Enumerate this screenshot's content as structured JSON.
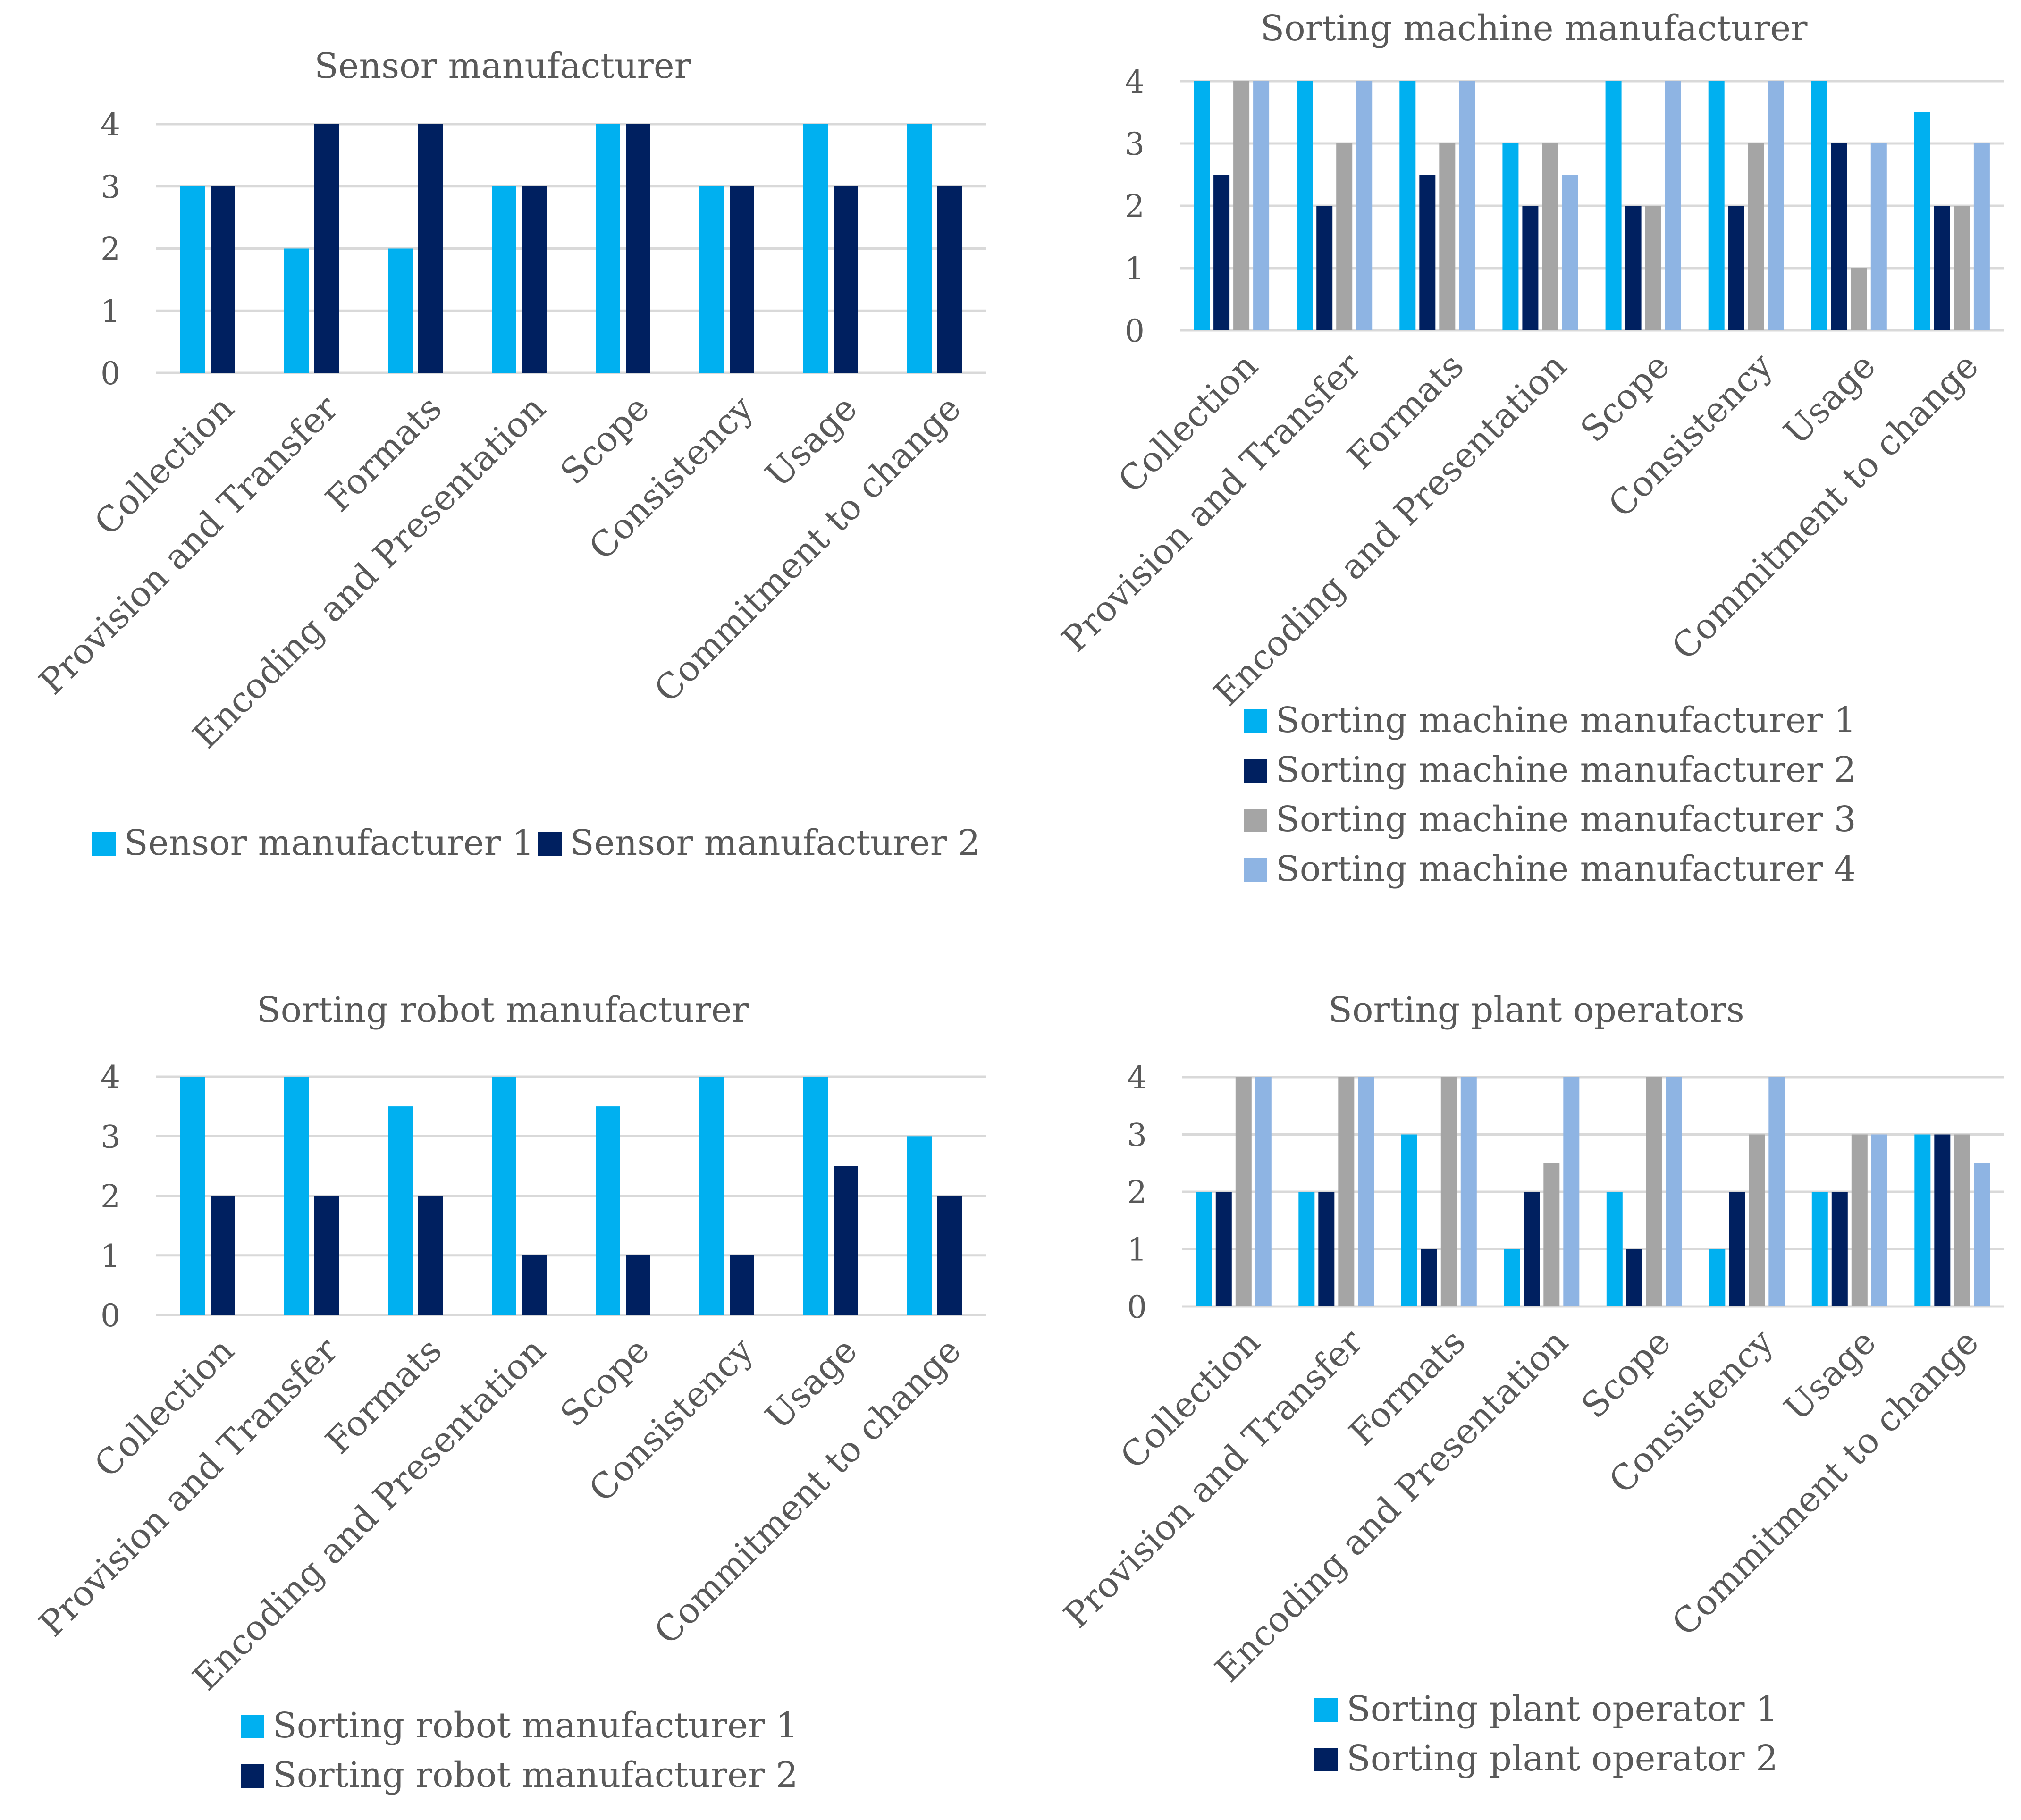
{
  "colors": {
    "s1": "#00b0f0",
    "s2": "#002060",
    "s3": "#a5a5a5",
    "s4": "#8eb4e3",
    "grid": "#d9d9d9",
    "text": "#595959"
  },
  "chart_data": [
    {
      "type": "bar",
      "title": "Sensor manufacturer",
      "categories": [
        "Collection",
        "Provision and Transfer",
        "Formats",
        "Encoding and Presentation",
        "Scope",
        "Consistency",
        "Usage",
        "Commitment to change"
      ],
      "series": [
        {
          "name": "Sensor manufacturer 1",
          "values": [
            3,
            2,
            2,
            3,
            4,
            3,
            4,
            4
          ]
        },
        {
          "name": "Sensor manufacturer 2",
          "values": [
            3,
            4,
            4,
            3,
            4,
            3,
            3,
            3
          ]
        }
      ],
      "yticks": [
        0,
        1,
        2,
        3,
        4
      ],
      "ylim": [
        0,
        4
      ],
      "xlabel": "",
      "ylabel": "",
      "legend": "bottom"
    },
    {
      "type": "bar",
      "title": "Sorting machine manufacturer",
      "categories": [
        "Collection",
        "Provision and Transfer",
        "Formats",
        "Encoding and Presentation",
        "Scope",
        "Consistency",
        "Usage",
        "Commitment to change"
      ],
      "series": [
        {
          "name": "Sorting machine manufacturer 1",
          "values": [
            4,
            4,
            4,
            3,
            4,
            4,
            4,
            3.5
          ]
        },
        {
          "name": "Sorting machine manufacturer 2",
          "values": [
            2.5,
            2,
            2.5,
            2,
            2,
            2,
            3,
            2
          ]
        },
        {
          "name": "Sorting machine manufacturer 3",
          "values": [
            4,
            3,
            3,
            3,
            2,
            3,
            1,
            2
          ]
        },
        {
          "name": "Sorting machine manufacturer 4",
          "values": [
            4,
            4,
            4,
            2.5,
            4,
            4,
            3,
            3
          ]
        }
      ],
      "yticks": [
        0,
        1,
        2,
        3,
        4
      ],
      "ylim": [
        0,
        4
      ],
      "xlabel": "",
      "ylabel": "",
      "legend": "bottom"
    },
    {
      "type": "bar",
      "title": "Sorting robot manufacturer",
      "categories": [
        "Collection",
        "Provision and Transfer",
        "Formats",
        "Encoding and Presentation",
        "Scope",
        "Consistency",
        "Usage",
        "Commitment to change"
      ],
      "series": [
        {
          "name": "Sorting robot manufacturer 1",
          "values": [
            4,
            4,
            3.5,
            4,
            3.5,
            4,
            4,
            3
          ]
        },
        {
          "name": "Sorting robot manufacturer 2",
          "values": [
            2,
            2,
            2,
            1,
            1,
            1,
            2.5,
            2
          ]
        }
      ],
      "yticks": [
        0,
        1,
        2,
        3,
        4
      ],
      "ylim": [
        0,
        4
      ],
      "xlabel": "",
      "ylabel": "",
      "legend": "bottom"
    },
    {
      "type": "bar",
      "title": "Sorting plant operators",
      "categories": [
        "Collection",
        "Provision and Transfer",
        "Formats",
        "Encoding and Presentation",
        "Scope",
        "Consistency",
        "Usage",
        "Commitment to change"
      ],
      "series": [
        {
          "name": "Sorting plant operator 1",
          "values": [
            2,
            2,
            3,
            1,
            2,
            1,
            2,
            3
          ]
        },
        {
          "name": "Sorting plant operator 2",
          "values": [
            2,
            2,
            1,
            2,
            1,
            2,
            2,
            3
          ]
        },
        {
          "name": "",
          "values": [
            4,
            4,
            4,
            2.5,
            4,
            3,
            3,
            3
          ]
        },
        {
          "name": "",
          "values": [
            4,
            4,
            4,
            4,
            4,
            4,
            3,
            2.5
          ]
        }
      ],
      "yticks": [
        0,
        1,
        2,
        3,
        4
      ],
      "ylim": [
        0,
        4
      ],
      "xlabel": "",
      "ylabel": "",
      "legend": "bottom"
    }
  ]
}
